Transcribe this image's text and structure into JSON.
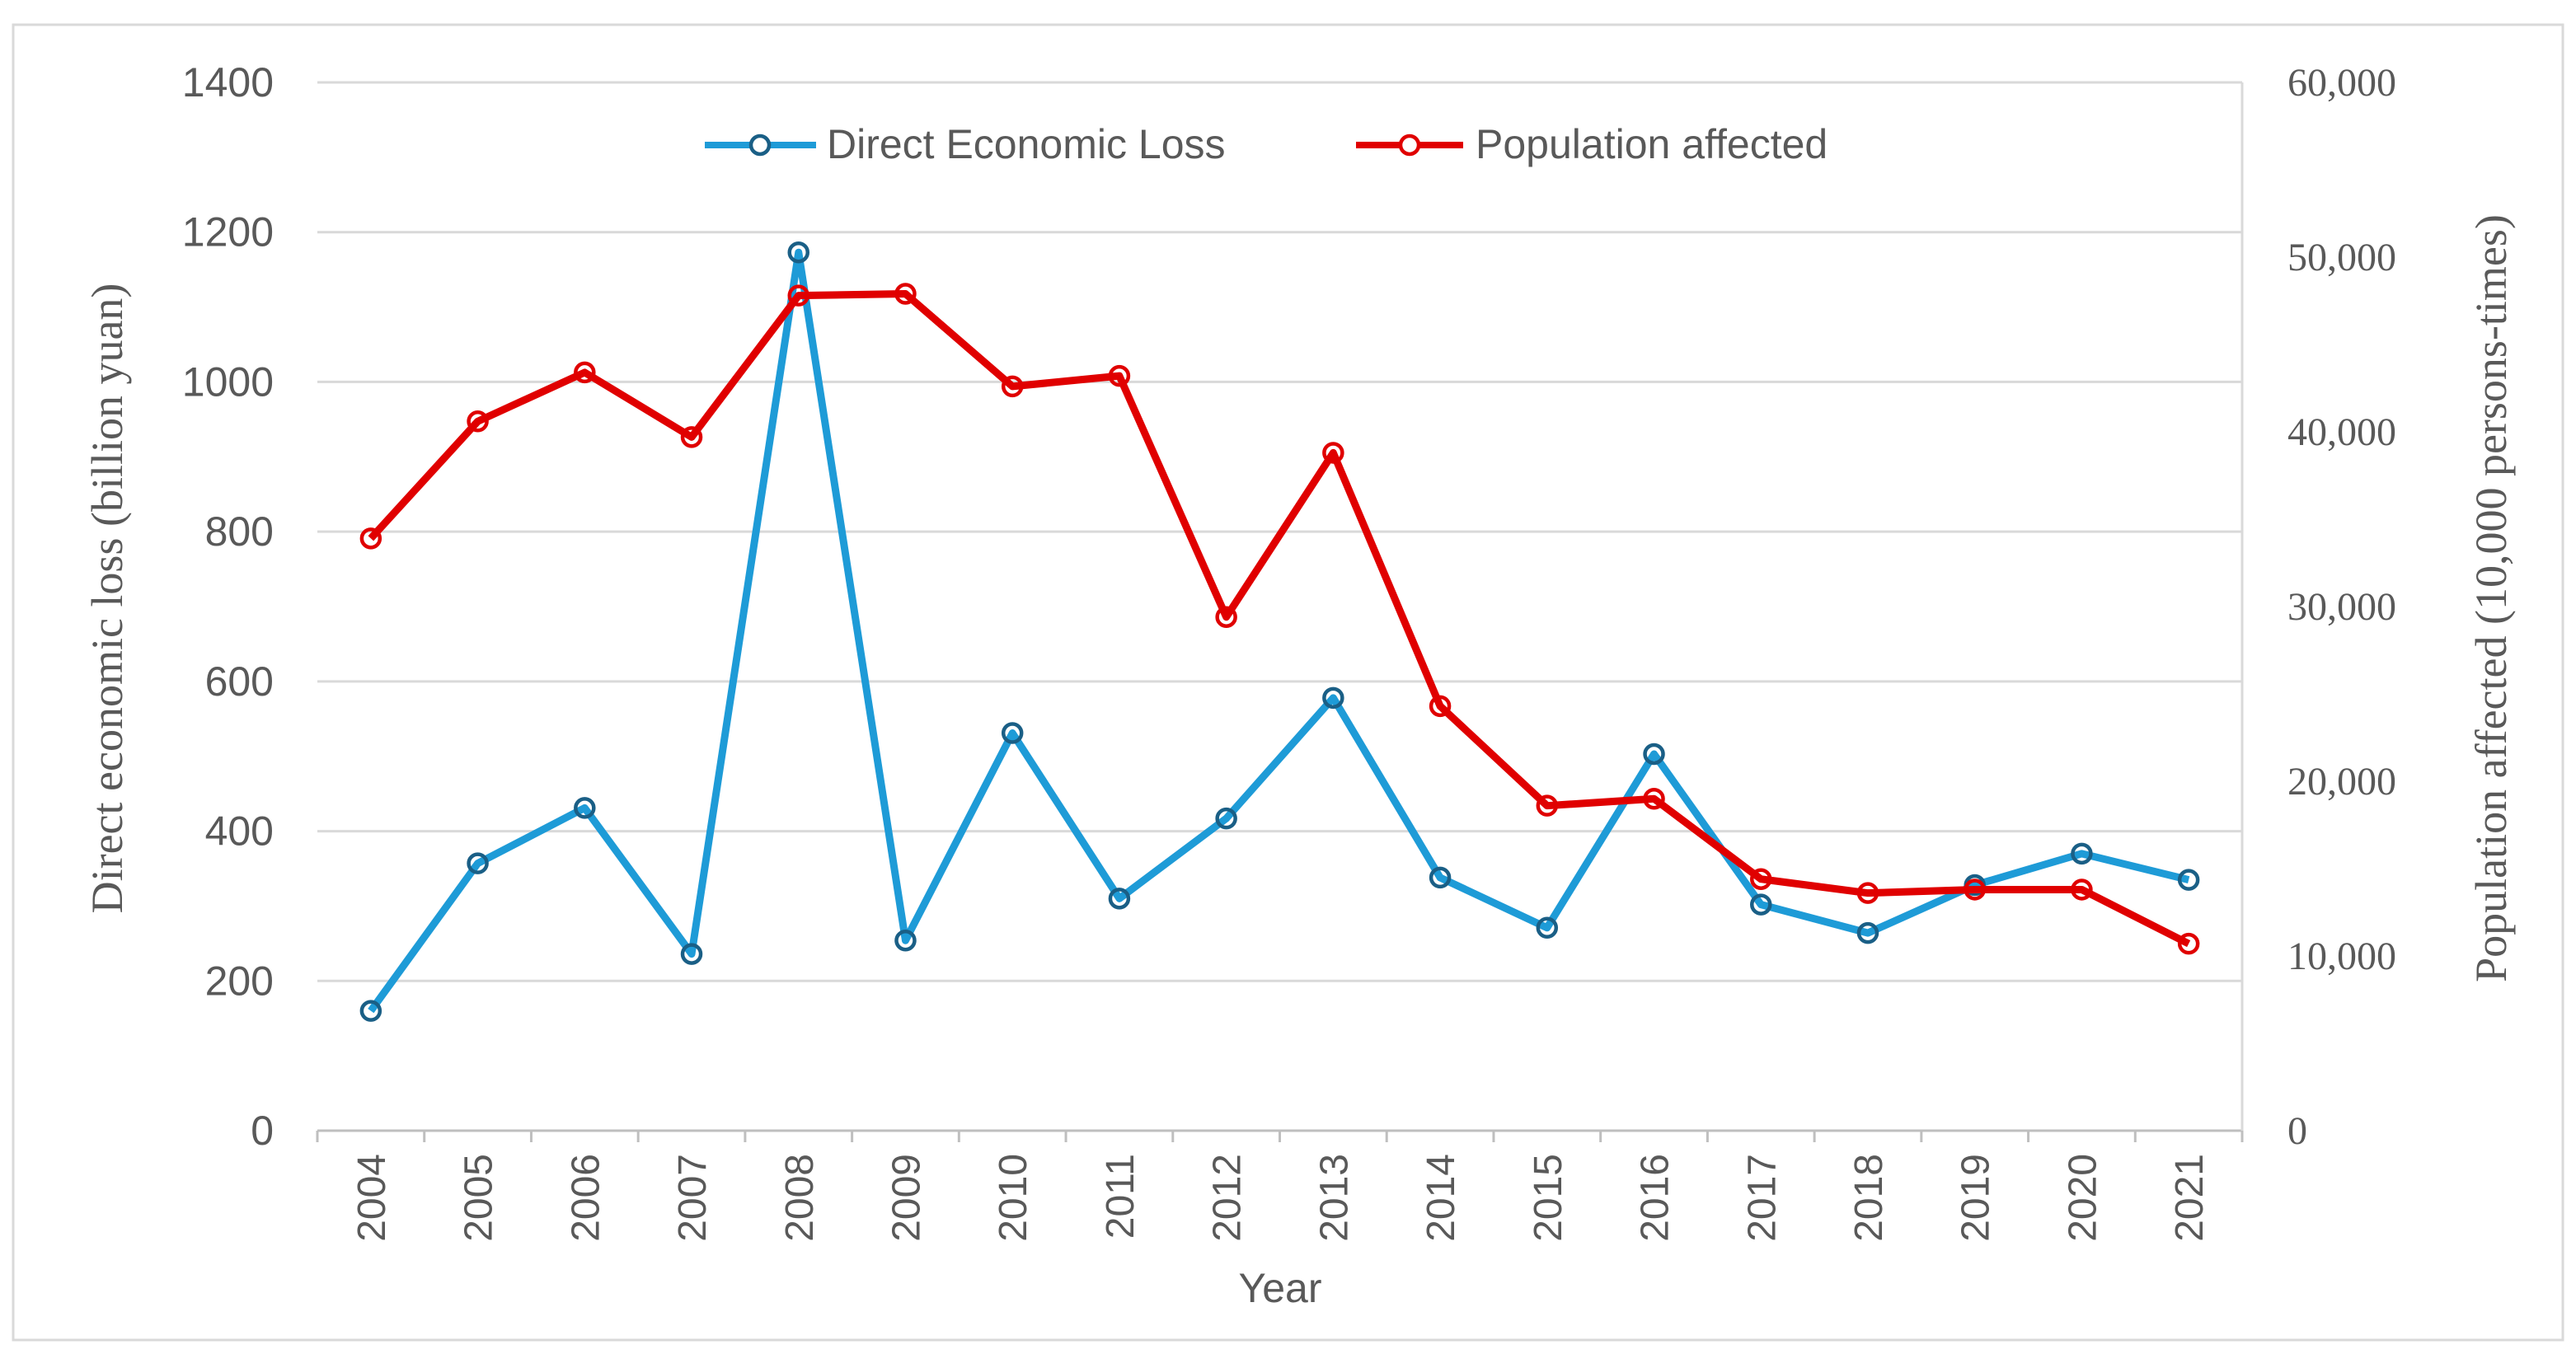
{
  "chart_data": {
    "type": "line",
    "categories": [
      "2004",
      "2005",
      "2006",
      "2007",
      "2008",
      "2009",
      "2010",
      "2011",
      "2012",
      "2013",
      "2014",
      "2015",
      "2016",
      "2017",
      "2018",
      "2019",
      "2020",
      "2021"
    ],
    "xlabel": "Year",
    "ylabel": "Direct economic loss (billion yuan)",
    "y2label": "Population affected (10,000 persons-times)",
    "ylim": [
      0,
      1400
    ],
    "y2lim": [
      0,
      60000
    ],
    "yticks": [
      "0",
      "200",
      "400",
      "600",
      "800",
      "1000",
      "1200",
      "1400"
    ],
    "y2ticks": [
      "0",
      "10,000",
      "20,000",
      "30,000",
      "40,000",
      "50,000",
      "60,000"
    ],
    "grid": true,
    "legend_position": "top-center",
    "series": [
      {
        "name": "Direct Economic Loss",
        "axis": "left",
        "color": "#1e9bd7",
        "values": [
          160,
          357,
          431,
          236,
          1173,
          254,
          531,
          310,
          417,
          578,
          338,
          271,
          503,
          302,
          264,
          328,
          370,
          335
        ]
      },
      {
        "name": "Population affected",
        "axis": "right",
        "color": "#e00000",
        "values": [
          33900,
          40600,
          43400,
          39700,
          47800,
          47900,
          42600,
          43200,
          29400,
          38800,
          24300,
          18600,
          19000,
          14400,
          13600,
          13800,
          13800,
          10700
        ]
      }
    ]
  }
}
